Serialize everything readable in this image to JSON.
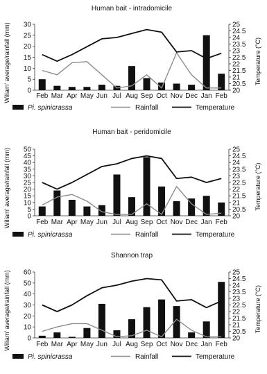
{
  "figure": {
    "left_axis_label": "Wiliam' average/rainfall (mm)",
    "right_axis_label": "Temperature (°C)",
    "x_ticks": [
      "Feb",
      "Mar",
      "Apr",
      "May",
      "Jun",
      "Jul",
      "Aug",
      "Sep",
      "Oct",
      "Nov",
      "Dec",
      "Jan",
      "Feb"
    ],
    "legend": [
      {
        "label": "Pi. spinicrassa",
        "italic": true,
        "kind": "bar"
      },
      {
        "label": "Rainfall",
        "italic": false,
        "kind": "line-thin"
      },
      {
        "label": "Temperature",
        "italic": false,
        "kind": "line-thick"
      }
    ],
    "colors": {
      "bar": "#111111",
      "rainfall": "#8c8c8c",
      "temperature": "#111111"
    }
  },
  "chart_data": [
    {
      "type": "bar",
      "title": "Human bait - intradomicile",
      "categories": [
        "Feb",
        "Mar",
        "Apr",
        "May",
        "Jun",
        "Jul",
        "Aug",
        "Sep",
        "Oct",
        "Nov",
        "Dec",
        "Jan",
        "Feb"
      ],
      "ylabel": "Wiliam' average/rainfall (mm)",
      "ylim": [
        0,
        30
      ],
      "yticks": [
        0,
        5,
        10,
        15,
        20,
        25,
        30
      ],
      "y2label": "Temperature (°C)",
      "y2lim": [
        20,
        25
      ],
      "y2ticks": [
        20,
        20.5,
        21,
        21.5,
        22,
        22.5,
        23,
        23.5,
        24,
        24.5,
        25
      ],
      "series": [
        {
          "name": "Pi. spinicrassa",
          "kind": "bar",
          "axis": "left",
          "values": [
            5,
            2,
            1.5,
            1.5,
            2.5,
            2,
            11,
            5.5,
            3.5,
            3,
            2.5,
            25,
            7.5
          ]
        },
        {
          "name": "Rainfall",
          "kind": "line",
          "axis": "left",
          "values": [
            9,
            7,
            12.5,
            13,
            7,
            1,
            2,
            7,
            1,
            17,
            7,
            1,
            1
          ]
        },
        {
          "name": "Temperature",
          "kind": "line",
          "axis": "right",
          "values": [
            22.7,
            22.2,
            22.7,
            23.3,
            23.9,
            24,
            24.3,
            24.6,
            24.4,
            22.9,
            23,
            22.4,
            22.8
          ]
        }
      ],
      "legend_position": "bottom"
    },
    {
      "type": "bar",
      "title": "Human bait - peridomicile",
      "categories": [
        "Feb",
        "Mar",
        "Apr",
        "May",
        "Jun",
        "Jul",
        "Aug",
        "Sep",
        "Oct",
        "Nov",
        "Dec",
        "Jan",
        "Feb"
      ],
      "ylabel": "Wiliam' average/rainfall (mm)",
      "ylim": [
        0,
        50
      ],
      "yticks": [
        0,
        5,
        10,
        15,
        20,
        25,
        30,
        35,
        40,
        45,
        50
      ],
      "y2label": "Temperature (°C)",
      "y2lim": [
        20,
        25
      ],
      "y2ticks": [
        20,
        20.5,
        21,
        21.5,
        22,
        22.5,
        23,
        23.5,
        24,
        24.5,
        25
      ],
      "series": [
        {
          "name": "Pi. spinicrassa",
          "kind": "bar",
          "axis": "left",
          "values": [
            7,
            19,
            12,
            7,
            8,
            31,
            14,
            44,
            22,
            11,
            13,
            15,
            10
          ]
        },
        {
          "name": "Rainfall",
          "kind": "line",
          "axis": "left",
          "values": [
            8,
            14,
            16,
            11,
            3,
            1,
            1,
            9,
            1,
            22,
            9,
            1,
            2
          ]
        },
        {
          "name": "Temperature",
          "kind": "line",
          "axis": "right",
          "values": [
            22.5,
            22,
            22.5,
            23.1,
            23.7,
            23.9,
            24.3,
            24.5,
            24.3,
            22.8,
            22.9,
            22.5,
            22.8
          ]
        }
      ],
      "legend_position": "bottom"
    },
    {
      "type": "bar",
      "title": "Shannon trap",
      "categories": [
        "Feb",
        "Mar",
        "Apr",
        "May",
        "Jun",
        "Jul",
        "Aug",
        "Sep",
        "Oct",
        "Nov",
        "Dec",
        "Jan",
        "Feb"
      ],
      "ylabel": "Wiliam' average/rainfall (mm)",
      "ylim": [
        0,
        60
      ],
      "yticks": [
        0,
        10,
        20,
        30,
        40,
        50,
        60
      ],
      "y2label": "Temperature (°C)",
      "y2lim": [
        20,
        25
      ],
      "y2ticks": [
        20,
        20.5,
        21,
        21.5,
        22,
        22.5,
        23,
        23.5,
        24,
        24.5,
        25
      ],
      "series": [
        {
          "name": "Pi. spinicrassa",
          "kind": "bar",
          "axis": "left",
          "values": [
            2,
            5,
            1,
            9,
            31,
            7,
            17,
            28,
            35,
            29,
            5,
            15,
            51
          ]
        },
        {
          "name": "Rainfall",
          "kind": "line",
          "axis": "left",
          "values": [
            6,
            10,
            13,
            13,
            7,
            1,
            2,
            7,
            1,
            17,
            7,
            1,
            1
          ]
        },
        {
          "name": "Temperature",
          "kind": "line",
          "axis": "right",
          "values": [
            22.5,
            22,
            22.5,
            23.2,
            23.8,
            24,
            24.3,
            24.5,
            24.4,
            22.8,
            22.9,
            22.3,
            22.8
          ]
        }
      ],
      "legend_position": "bottom"
    }
  ]
}
